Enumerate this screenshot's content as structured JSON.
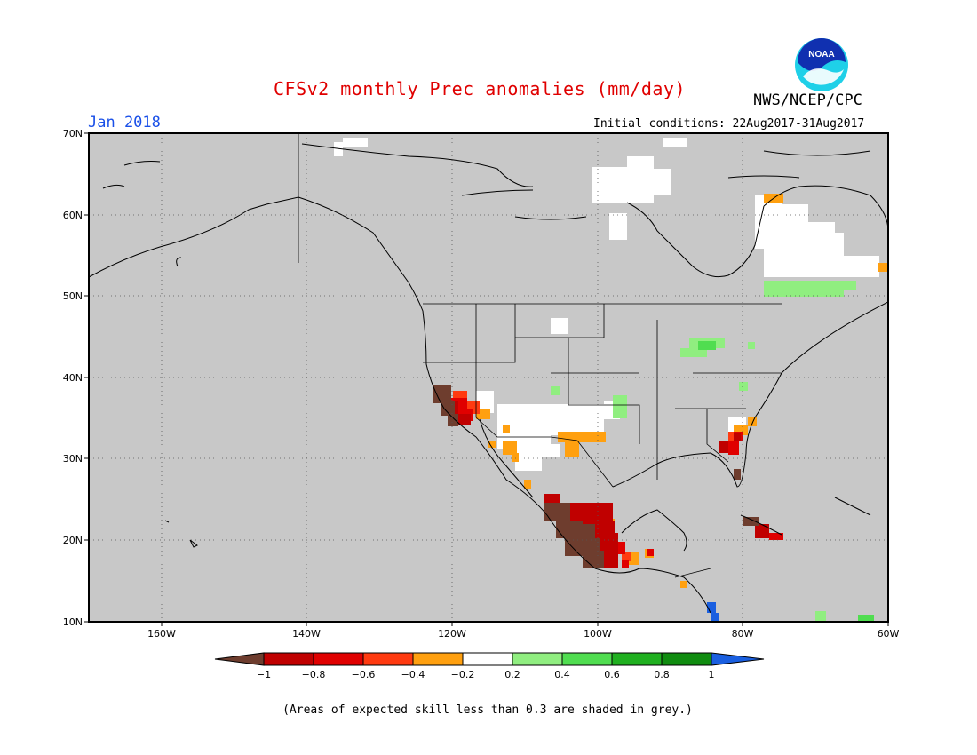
{
  "title": "CFSv2 monthly Prec anomalies (mm/day)",
  "valid_month": "Jan 2018",
  "initial_conditions": "Initial conditions: 22Aug2017-31Aug2017",
  "agency": "NWS/NCEP/CPC",
  "logo_text": "NOAA",
  "footnote": "(Areas of expected skill less than 0.3 are shaded in grey.)",
  "map": {
    "lon_range": [
      -170,
      -60
    ],
    "lat_range": [
      10,
      70
    ],
    "lon_ticks": [
      "160W",
      "140W",
      "120W",
      "100W",
      "80W",
      "60W"
    ],
    "lat_ticks": [
      "70N",
      "60N",
      "50N",
      "40N",
      "30N",
      "20N",
      "10N"
    ],
    "grid": true,
    "background_color": "#c8c8c8"
  },
  "colorbar": {
    "labels": [
      "−1",
      "−0.8",
      "−0.6",
      "−0.4",
      "−0.2",
      "0.2",
      "0.4",
      "0.6",
      "0.8",
      "1"
    ],
    "colors": [
      "#6e3d2e",
      "#c00000",
      "#e00000",
      "#ff3a10",
      "#ffa010",
      "#ffffff",
      "#90ee80",
      "#50dd50",
      "#20b020",
      "#108c10",
      "#1a5fe0"
    ]
  }
}
